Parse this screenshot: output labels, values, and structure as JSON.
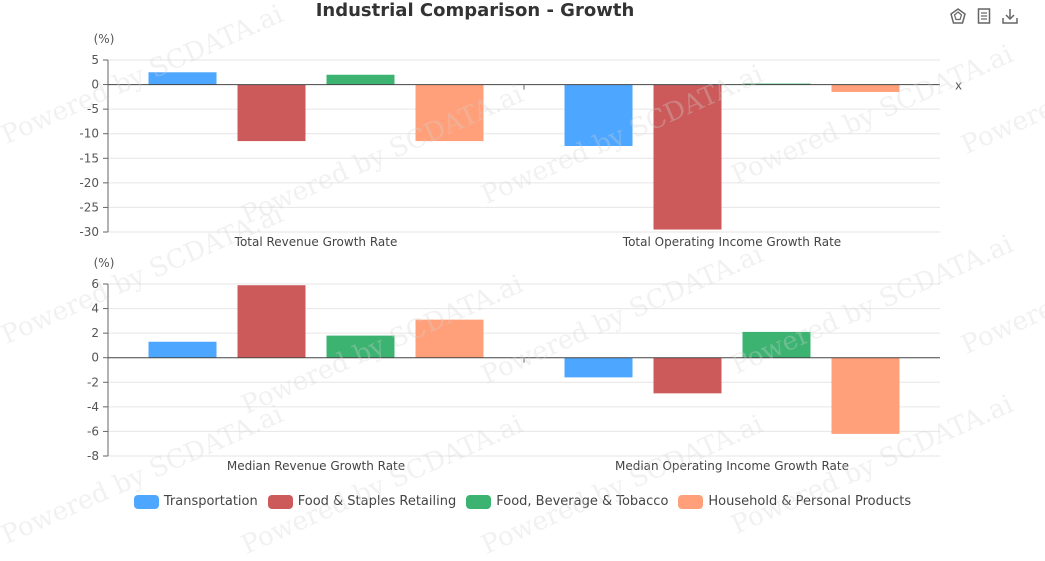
{
  "title": "Industrial Comparison - Growth",
  "watermark": "Powered by SCDATA.ai",
  "toolbox": [
    {
      "name": "data-view-icon"
    },
    {
      "name": "document-icon"
    },
    {
      "name": "download-icon"
    }
  ],
  "colors": {
    "Transportation": "#4da6ff",
    "Food & Staples Retailing": "#cc5a5a",
    "Food, Beverage & Tobacco": "#3cb371",
    "Household & Personal Products": "#ffa07a"
  },
  "chart_data": [
    {
      "type": "bar",
      "unit_label": "(%)",
      "x_axis_name": "x",
      "categories": [
        "Total Revenue Growth Rate",
        "Total Operating Income Growth Rate"
      ],
      "ylim": [
        -30,
        5
      ],
      "yticks": [
        5,
        0,
        -5,
        -10,
        -15,
        -20,
        -25,
        -30
      ],
      "grid": true,
      "series": [
        {
          "name": "Transportation",
          "values": [
            2.5,
            -12.5
          ]
        },
        {
          "name": "Food & Staples Retailing",
          "values": [
            -11.5,
            -29.5
          ]
        },
        {
          "name": "Food, Beverage & Tobacco",
          "values": [
            2.0,
            0.2
          ]
        },
        {
          "name": "Household & Personal Products",
          "values": [
            -11.5,
            -1.5
          ]
        }
      ]
    },
    {
      "type": "bar",
      "unit_label": "(%)",
      "categories": [
        "Median Revenue Growth Rate",
        "Median Operating Income Growth Rate"
      ],
      "ylim": [
        -8,
        6
      ],
      "yticks": [
        6,
        4,
        2,
        0,
        -2,
        -4,
        -6,
        -8
      ],
      "grid": true,
      "series": [
        {
          "name": "Transportation",
          "values": [
            1.3,
            -1.6
          ]
        },
        {
          "name": "Food & Staples Retailing",
          "values": [
            5.9,
            -2.9
          ]
        },
        {
          "name": "Food, Beverage & Tobacco",
          "values": [
            1.8,
            2.1
          ]
        },
        {
          "name": "Household & Personal Products",
          "values": [
            3.1,
            -6.2
          ]
        }
      ]
    }
  ],
  "legend": {
    "placement": "bottom-center",
    "items": [
      "Transportation",
      "Food & Staples Retailing",
      "Food, Beverage & Tobacco",
      "Household & Personal Products"
    ]
  }
}
